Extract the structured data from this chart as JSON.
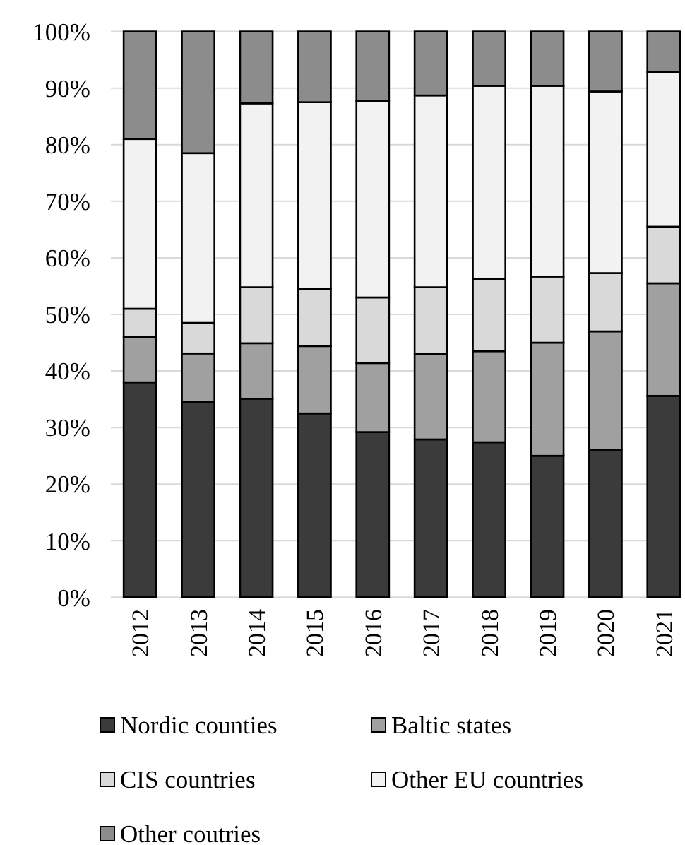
{
  "chart_data": {
    "type": "bar",
    "stacked": true,
    "categories": [
      "2012",
      "2013",
      "2014",
      "2015",
      "2016",
      "2017",
      "2018",
      "2019",
      "2020",
      "2021"
    ],
    "series": [
      {
        "name": "Nordic counties",
        "color": "#3b3b3b",
        "values": [
          38.0,
          34.5,
          35.1,
          32.5,
          29.2,
          27.9,
          27.4,
          25.0,
          26.1,
          35.6
        ]
      },
      {
        "name": "Baltic states",
        "color": "#a0a0a0",
        "values": [
          8.0,
          8.6,
          9.8,
          11.9,
          12.2,
          15.1,
          16.1,
          20.0,
          20.9,
          19.9
        ]
      },
      {
        "name": "CIS countries",
        "color": "#d9d9d9",
        "values": [
          5.0,
          5.4,
          9.9,
          10.1,
          11.6,
          11.8,
          12.8,
          11.7,
          10.3,
          10.0
        ]
      },
      {
        "name": "Other EU countries",
        "color": "#f2f2f2",
        "values": [
          30.0,
          30.0,
          32.5,
          33.0,
          34.7,
          33.9,
          34.1,
          33.7,
          32.1,
          27.3
        ]
      },
      {
        "name": "Other coutries",
        "color": "#8c8c8c",
        "values": [
          19.0,
          21.5,
          12.7,
          12.5,
          12.3,
          11.3,
          9.6,
          9.6,
          10.6,
          7.2
        ]
      }
    ],
    "ylim": [
      0,
      100
    ],
    "yticks": [
      {
        "value": 0,
        "label": "0%"
      },
      {
        "value": 10,
        "label": "10%"
      },
      {
        "value": 20,
        "label": "20%"
      },
      {
        "value": 30,
        "label": "30%"
      },
      {
        "value": 40,
        "label": "40%"
      },
      {
        "value": 50,
        "label": "50%"
      },
      {
        "value": 60,
        "label": "60%"
      },
      {
        "value": 70,
        "label": "70%"
      },
      {
        "value": 80,
        "label": "80%"
      },
      {
        "value": 90,
        "label": "90%"
      },
      {
        "value": 100,
        "label": "100%"
      }
    ],
    "grid": "y",
    "legend": "bottom"
  }
}
